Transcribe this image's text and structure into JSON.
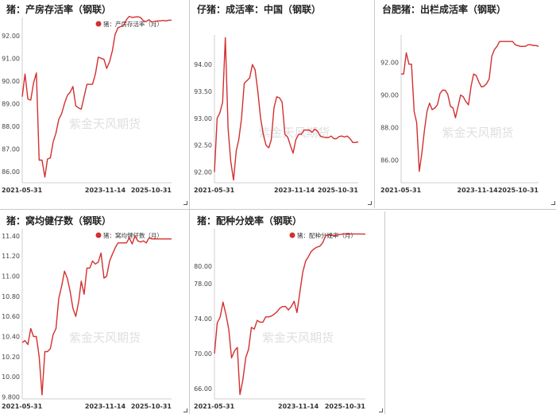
{
  "watermark": "紫金天风期货",
  "accent_color": "#d32f2f",
  "panels": [
    {
      "title": "猪：产房存活率（钢联）"
    },
    {
      "title": "仔猪：成活率：中国（钢联）"
    },
    {
      "title": "台肥猪：出栏成活率（钢联）"
    },
    {
      "title": "猪：窝均健仔数（钢联）"
    },
    {
      "title": "猪：配种分娩率（钢联）"
    }
  ],
  "chart_data": [
    {
      "type": "line",
      "title": "猪：产房存活率（钢联）",
      "legend": "猪：产房存活率（月）",
      "legend_position": "top-right",
      "x_ticks": [
        "2021-05-31",
        "2023-11-14",
        "2025-10-31"
      ],
      "x_range": [
        "2021-05-31",
        "2025-10-31"
      ],
      "y_ticks": [
        "86.00",
        "87.00",
        "88.00",
        "89.00",
        "90.00",
        "91.00",
        "92.00"
      ],
      "ylim": [
        85.5,
        92.8
      ],
      "series": [
        {
          "x": [
            "2021-05-31",
            "2021-06-30",
            "2021-07-31",
            "2021-08-31",
            "2021-09-30",
            "2021-10-31",
            "2021-11-30",
            "2021-12-31",
            "2022-01-31",
            "2022-02-28",
            "2022-03-31",
            "2022-04-30",
            "2022-05-31",
            "2022-06-30",
            "2022-07-31",
            "2022-08-31",
            "2022-09-30",
            "2022-10-31",
            "2022-11-30",
            "2022-12-31",
            "2023-01-31",
            "2023-02-28",
            "2023-03-31",
            "2023-04-30",
            "2023-05-31",
            "2023-06-30",
            "2023-07-31",
            "2023-08-31",
            "2023-09-30",
            "2023-10-31",
            "2023-11-30",
            "2023-12-31",
            "2024-01-31",
            "2024-02-29",
            "2024-03-31",
            "2024-04-30",
            "2024-05-31",
            "2024-06-30",
            "2024-07-31",
            "2024-08-31",
            "2024-09-30",
            "2024-10-31",
            "2024-11-30",
            "2024-12-31",
            "2025-01-31",
            "2025-02-28",
            "2025-03-31",
            "2025-04-30",
            "2025-05-31",
            "2025-06-30",
            "2025-07-31",
            "2025-08-31",
            "2025-09-30",
            "2025-10-31"
          ],
          "y": [
            89.3,
            90.3,
            89.2,
            89.15,
            89.9,
            90.35,
            86.5,
            86.5,
            85.75,
            86.55,
            86.6,
            87.3,
            87.7,
            88.3,
            88.55,
            89.0,
            89.35,
            89.5,
            89.75,
            88.9,
            88.8,
            88.75,
            89.3,
            89.85,
            89.85,
            89.85,
            90.3,
            91.05,
            91.0,
            90.95,
            90.55,
            90.85,
            91.35,
            92.05,
            92.35,
            92.4,
            92.45,
            92.7,
            92.85,
            92.8,
            92.82,
            92.83,
            92.8,
            92.65,
            92.62,
            92.7,
            92.6,
            92.62,
            92.65,
            92.65,
            92.67,
            92.65,
            92.68,
            92.68
          ]
        }
      ]
    },
    {
      "type": "line",
      "title": "仔猪：成活率：中国（钢联）",
      "x_ticks": [
        "2021-05-31",
        "2023-11-14",
        "2025-10-31"
      ],
      "x_range": [
        "2021-05-31",
        "2025-10-31"
      ],
      "y_ticks": [
        "92.00",
        "92.50",
        "93.00",
        "93.50",
        "94.00"
      ],
      "ylim": [
        91.8,
        94.55
      ],
      "series": [
        {
          "x": [
            "2021-05-31",
            "2021-06-30",
            "2021-07-31",
            "2021-08-31",
            "2021-09-30",
            "2021-10-31",
            "2021-11-30",
            "2021-12-31",
            "2022-01-31",
            "2022-02-28",
            "2022-03-31",
            "2022-04-30",
            "2022-05-31",
            "2022-06-30",
            "2022-07-31",
            "2022-08-31",
            "2022-09-30",
            "2022-10-31",
            "2022-11-30",
            "2022-12-31",
            "2023-01-31",
            "2023-02-28",
            "2023-03-31",
            "2023-04-30",
            "2023-05-31",
            "2023-06-30",
            "2023-07-31",
            "2023-08-31",
            "2023-09-30",
            "2023-10-31",
            "2023-11-30",
            "2023-12-31",
            "2024-01-31",
            "2024-02-29",
            "2024-03-31",
            "2024-04-30",
            "2024-05-31",
            "2024-06-30",
            "2024-07-31",
            "2024-08-31",
            "2024-09-30",
            "2024-10-31",
            "2024-11-30",
            "2024-12-31",
            "2025-01-31",
            "2025-02-28",
            "2025-03-31",
            "2025-04-30",
            "2025-05-31",
            "2025-06-30",
            "2025-07-31",
            "2025-08-31",
            "2025-09-30",
            "2025-10-31"
          ],
          "y": [
            92.0,
            93.0,
            93.1,
            93.3,
            94.5,
            92.8,
            92.2,
            91.85,
            92.4,
            92.6,
            93.0,
            93.65,
            93.7,
            93.75,
            94.0,
            93.9,
            93.5,
            93.0,
            92.7,
            92.5,
            92.45,
            92.6,
            93.2,
            93.4,
            93.38,
            93.3,
            92.7,
            92.65,
            92.5,
            92.35,
            92.6,
            92.7,
            92.7,
            92.78,
            92.78,
            92.78,
            92.74,
            92.8,
            92.76,
            92.67,
            92.65,
            92.64,
            92.64,
            92.67,
            92.62,
            92.62,
            92.66,
            92.67,
            92.65,
            92.67,
            92.62,
            92.55,
            92.55,
            92.56
          ]
        }
      ]
    },
    {
      "type": "line",
      "title": "台肥猪：出栏成活率（钢联）",
      "x_ticks": [
        "2021-05-31",
        "2023-11-14",
        "2025-10-31"
      ],
      "x_range": [
        "2021-05-31",
        "2025-10-31"
      ],
      "y_ticks": [
        "86.00",
        "88.00",
        "90.00",
        "92.00"
      ],
      "ylim": [
        84.6,
        93.7
      ],
      "series": [
        {
          "x": [
            "2021-05-31",
            "2021-06-30",
            "2021-07-31",
            "2021-08-31",
            "2021-09-30",
            "2021-10-31",
            "2021-11-30",
            "2021-12-31",
            "2022-01-31",
            "2022-02-28",
            "2022-03-31",
            "2022-04-30",
            "2022-05-31",
            "2022-06-30",
            "2022-07-31",
            "2022-08-31",
            "2022-09-30",
            "2022-10-31",
            "2022-11-30",
            "2022-12-31",
            "2023-01-31",
            "2023-02-28",
            "2023-03-31",
            "2023-04-30",
            "2023-05-31",
            "2023-06-30",
            "2023-07-31",
            "2023-08-31",
            "2023-09-30",
            "2023-10-31",
            "2023-11-30",
            "2023-12-31",
            "2024-01-31",
            "2024-02-29",
            "2024-03-31",
            "2024-04-30",
            "2024-05-31",
            "2024-06-30",
            "2024-07-31",
            "2024-08-31",
            "2024-09-30",
            "2024-10-31",
            "2024-11-30",
            "2024-12-31",
            "2025-01-31",
            "2025-02-28",
            "2025-03-31",
            "2025-04-30",
            "2025-05-31",
            "2025-06-30",
            "2025-07-31",
            "2025-08-31",
            "2025-09-30",
            "2025-10-31"
          ],
          "y": [
            91.3,
            91.3,
            92.6,
            91.9,
            91.9,
            89.0,
            88.3,
            85.3,
            86.5,
            87.8,
            89.0,
            89.5,
            89.1,
            89.2,
            89.4,
            90.1,
            90.3,
            90.3,
            90.05,
            89.3,
            89.2,
            88.6,
            89.3,
            90.0,
            89.9,
            89.6,
            89.4,
            90.55,
            91.3,
            91.2,
            90.8,
            90.5,
            90.55,
            90.7,
            91.0,
            92.4,
            92.8,
            93.0,
            93.3,
            93.3,
            93.3,
            93.3,
            93.3,
            93.3,
            93.1,
            93.05,
            93.0,
            93.0,
            93.0,
            93.1,
            93.1,
            93.05,
            93.05,
            93.0
          ]
        }
      ]
    },
    {
      "type": "line",
      "title": "猪：窝均健仔数（钢联）",
      "legend": "猪：窝均健仔数（月）",
      "legend_position": "top-right",
      "x_ticks": [
        "2021-05-31",
        "2023-11-14",
        "2025-10-31"
      ],
      "x_range": [
        "2021-05-31",
        "2025-10-31"
      ],
      "y_ticks": [
        "9.800",
        "10.00",
        "10.20",
        "10.40",
        "10.60",
        "10.80",
        "11.00",
        "11.20",
        "11.40"
      ],
      "ylim": [
        9.78,
        11.47
      ],
      "series": [
        {
          "x": [
            "2021-05-31",
            "2021-06-30",
            "2021-07-31",
            "2021-08-31",
            "2021-09-30",
            "2021-10-31",
            "2021-11-30",
            "2021-12-31",
            "2022-01-31",
            "2022-02-28",
            "2022-03-31",
            "2022-04-30",
            "2022-05-31",
            "2022-06-30",
            "2022-07-31",
            "2022-08-31",
            "2022-09-30",
            "2022-10-31",
            "2022-11-30",
            "2022-12-31",
            "2023-01-31",
            "2023-02-28",
            "2023-03-31",
            "2023-04-30",
            "2023-05-31",
            "2023-06-30",
            "2023-07-31",
            "2023-08-31",
            "2023-09-30",
            "2023-10-31",
            "2023-11-30",
            "2023-12-31",
            "2024-01-31",
            "2024-02-29",
            "2024-03-31",
            "2024-04-30",
            "2024-05-31",
            "2024-06-30",
            "2024-07-31",
            "2024-08-31",
            "2024-09-30",
            "2024-10-31",
            "2024-11-30",
            "2024-12-31",
            "2025-01-31",
            "2025-02-28",
            "2025-03-31",
            "2025-04-30",
            "2025-05-31",
            "2025-06-30",
            "2025-07-31",
            "2025-08-31",
            "2025-09-30",
            "2025-10-31"
          ],
          "y": [
            10.34,
            10.36,
            10.32,
            10.48,
            10.4,
            10.4,
            10.2,
            9.82,
            10.25,
            10.25,
            10.28,
            10.42,
            10.48,
            10.78,
            10.9,
            11.05,
            10.98,
            10.85,
            10.68,
            10.6,
            10.75,
            10.95,
            10.82,
            11.08,
            11.08,
            11.15,
            11.12,
            11.14,
            11.23,
            10.98,
            11.0,
            11.15,
            11.22,
            11.28,
            11.33,
            11.33,
            11.33,
            11.33,
            11.38,
            11.32,
            11.4,
            11.35,
            11.34,
            11.35,
            11.33,
            11.38,
            11.37,
            11.37,
            11.37,
            11.37,
            11.37,
            11.37,
            11.37,
            11.37
          ]
        }
      ]
    },
    {
      "type": "line",
      "title": "猪：配种分娩率（钢联）",
      "legend": "猪：配种分娩率（月）",
      "legend_position": "top-right",
      "x_ticks": [
        "2021-05-31",
        "2023-11-14",
        "2025-10-31"
      ],
      "x_range": [
        "2021-05-31",
        "2025-10-31"
      ],
      "y_ticks": [
        "66.00",
        "70.00",
        "74.00",
        "78.00",
        "80.00"
      ],
      "ylim": [
        64.8,
        84.3
      ],
      "series": [
        {
          "x": [
            "2021-05-31",
            "2021-06-30",
            "2021-07-31",
            "2021-08-31",
            "2021-09-30",
            "2021-10-31",
            "2021-11-30",
            "2021-12-31",
            "2022-01-31",
            "2022-02-28",
            "2022-03-31",
            "2022-04-30",
            "2022-05-31",
            "2022-06-30",
            "2022-07-31",
            "2022-08-31",
            "2022-09-30",
            "2022-10-31",
            "2022-11-30",
            "2022-12-31",
            "2023-01-31",
            "2023-02-28",
            "2023-03-31",
            "2023-04-30",
            "2023-05-31",
            "2023-06-30",
            "2023-07-31",
            "2023-08-31",
            "2023-09-30",
            "2023-10-31",
            "2023-11-30",
            "2023-12-31",
            "2024-01-31",
            "2024-02-29",
            "2024-03-31",
            "2024-04-30",
            "2024-05-31",
            "2024-06-30",
            "2024-07-31",
            "2024-08-31",
            "2024-09-30",
            "2024-10-31",
            "2024-11-30",
            "2024-12-31",
            "2025-01-31",
            "2025-02-28",
            "2025-03-31",
            "2025-04-30",
            "2025-05-31",
            "2025-06-30",
            "2025-07-31",
            "2025-08-31",
            "2025-09-30",
            "2025-10-31"
          ],
          "y": [
            70.0,
            73.5,
            74.2,
            75.9,
            74.5,
            72.8,
            69.5,
            70.3,
            70.7,
            65.3,
            67.0,
            69.5,
            70.5,
            73.0,
            72.8,
            73.8,
            73.6,
            73.6,
            74.2,
            74.2,
            74.3,
            74.5,
            74.8,
            75.2,
            75.4,
            75.4,
            75.0,
            75.4,
            76.0,
            74.7,
            77.0,
            79.3,
            80.6,
            81.1,
            81.7,
            82.0,
            82.2,
            82.3,
            82.7,
            83.5,
            83.6,
            83.6,
            83.5,
            83.6,
            83.65,
            83.7,
            83.7,
            83.72,
            83.7,
            83.72,
            83.72,
            83.72,
            83.7,
            83.7
          ]
        }
      ]
    }
  ]
}
